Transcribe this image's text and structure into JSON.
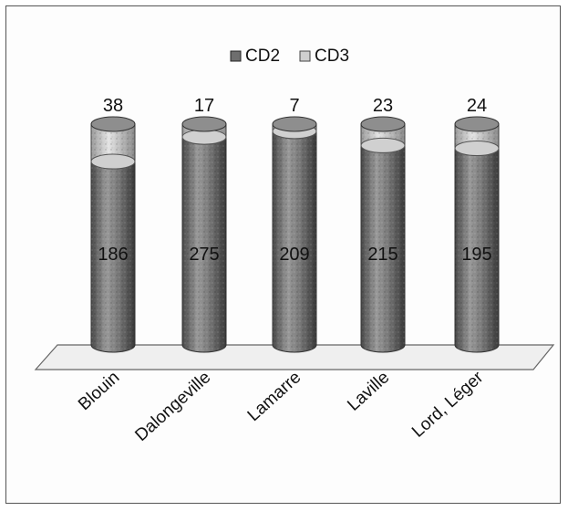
{
  "chart_data": {
    "type": "bar",
    "stacked": true,
    "style": "3d-cylinder",
    "title": "",
    "xlabel": "",
    "ylabel": "",
    "legend_position": "top",
    "grid": false,
    "categories": [
      "Blouin",
      "Dalongeville",
      "Lamarre",
      "Laville",
      "Lord, Léger"
    ],
    "series": [
      {
        "name": "CD2",
        "values": [
          186,
          275,
          209,
          215,
          195
        ],
        "color": "#7f7f7f"
      },
      {
        "name": "CD3",
        "values": [
          38,
          17,
          7,
          23,
          24
        ],
        "color": "#c8c8c8"
      }
    ]
  }
}
